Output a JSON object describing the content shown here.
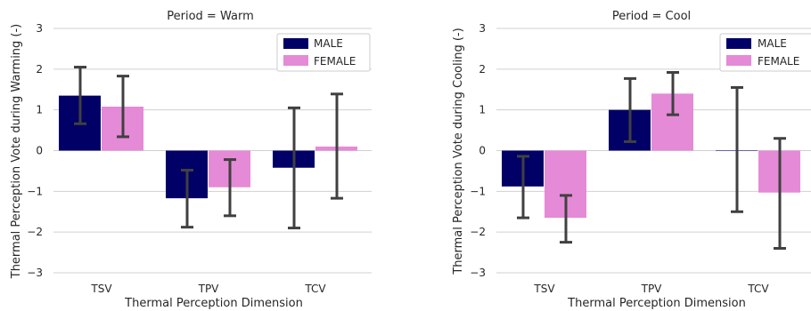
{
  "colors": {
    "male": "#000066",
    "female": "#E58AD6",
    "grid": "#d0d0d0",
    "error": "#404040"
  },
  "chart_data": [
    {
      "type": "bar",
      "title": "Period = Warm",
      "xlabel": "Thermal Perception Dimension",
      "ylabel": "Thermal Perception Vote during Warming (-)",
      "categories": [
        "TSV",
        "TPV",
        "TCV"
      ],
      "ylim": [
        -3,
        3
      ],
      "yticks": [
        "−3",
        "−2",
        "−1",
        "0",
        "1",
        "2",
        "3"
      ],
      "grid": "horizontal",
      "legend": "top-right",
      "series": [
        {
          "name": "MALE",
          "values": [
            1.35,
            -1.17,
            -0.42
          ],
          "err_low": [
            0.66,
            -1.88,
            -1.9
          ],
          "err_high": [
            2.05,
            -0.48,
            1.05
          ]
        },
        {
          "name": "FEMALE",
          "values": [
            1.08,
            -0.9,
            0.1
          ],
          "err_low": [
            0.34,
            -1.6,
            -1.17
          ],
          "err_high": [
            1.83,
            -0.22,
            1.39
          ]
        }
      ]
    },
    {
      "type": "bar",
      "title": "Period = Cool",
      "xlabel": "Thermal Perception Dimension",
      "ylabel": "Thermal Perception Vote during Cooling (-)",
      "categories": [
        "TSV",
        "TPV",
        "TCV"
      ],
      "ylim": [
        -3,
        3
      ],
      "yticks": [
        "−3",
        "−2",
        "−1",
        "0",
        "1",
        "2",
        "3"
      ],
      "grid": "horizontal",
      "legend": "top-right",
      "series": [
        {
          "name": "MALE",
          "values": [
            -0.88,
            1.0,
            0.0
          ],
          "err_low": [
            -1.65,
            0.22,
            -1.5
          ],
          "err_high": [
            -0.14,
            1.77,
            1.55
          ]
        },
        {
          "name": "FEMALE",
          "values": [
            -1.65,
            1.4,
            -1.03
          ],
          "err_low": [
            -2.25,
            0.88,
            -2.4
          ],
          "err_high": [
            -1.1,
            1.92,
            0.3
          ]
        }
      ]
    }
  ]
}
